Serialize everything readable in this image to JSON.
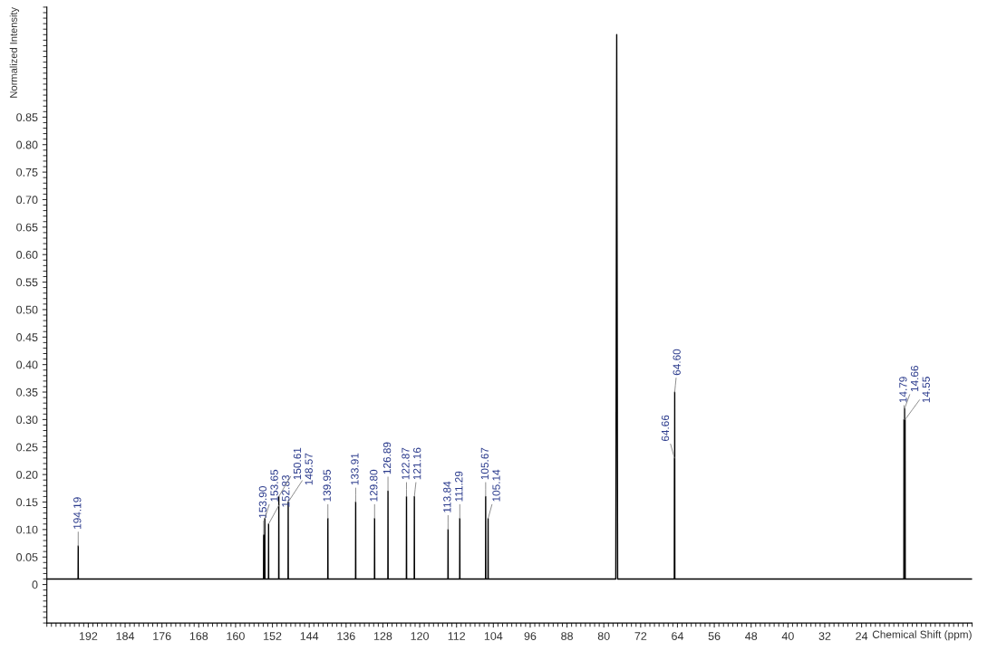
{
  "chart_data": {
    "type": "line",
    "xlabel": "Chemical Shift (ppm)",
    "ylabel": "Normalized Intensity",
    "xlim": [
      201,
      0
    ],
    "ylim": [
      -0.07,
      1.05
    ],
    "xticks": [
      192,
      184,
      176,
      168,
      160,
      152,
      144,
      136,
      128,
      120,
      112,
      104,
      96,
      88,
      80,
      72,
      64,
      56,
      48,
      40,
      32,
      24
    ],
    "yticks": [
      0,
      {
        "value": 0.05,
        "label": "0.05"
      },
      {
        "value": 0.1,
        "label": "0.10"
      },
      {
        "value": 0.15,
        "label": "0.15"
      },
      {
        "value": 0.2,
        "label": "0.20"
      },
      {
        "value": 0.25,
        "label": "0.25"
      },
      {
        "value": 0.3,
        "label": "0.30"
      },
      {
        "value": 0.35,
        "label": "0.35"
      },
      {
        "value": 0.4,
        "label": "0.40"
      },
      {
        "value": 0.45,
        "label": "0.45"
      },
      {
        "value": 0.5,
        "label": "0.50"
      },
      {
        "value": 0.55,
        "label": "0.55"
      },
      {
        "value": 0.6,
        "label": "0.60"
      },
      {
        "value": 0.65,
        "label": "0.65"
      },
      {
        "value": 0.7,
        "label": "0.70"
      },
      {
        "value": 0.75,
        "label": "0.75"
      },
      {
        "value": 0.8,
        "label": "0.80"
      },
      {
        "value": 0.85,
        "label": "0.85"
      }
    ],
    "grid": false,
    "marker": "none",
    "line_style": "solid",
    "series": [
      {
        "color": "#000000",
        "x": [
          201,
          194.22,
          194.19,
          194.16,
          153.93,
          153.9,
          153.87,
          153.68,
          153.65,
          153.62,
          152.86,
          152.83,
          152.8,
          150.64,
          150.61,
          150.58,
          148.6,
          148.57,
          148.54,
          139.98,
          139.95,
          139.92,
          133.94,
          133.91,
          133.88,
          129.83,
          129.8,
          129.77,
          126.92,
          126.89,
          126.86,
          122.9,
          122.87,
          122.84,
          121.19,
          121.16,
          121.13,
          113.87,
          113.84,
          113.81,
          111.32,
          111.29,
          111.26,
          105.7,
          105.67,
          105.64,
          105.17,
          105.14,
          105.11,
          77.4,
          77.2,
          77.0,
          64.69,
          64.66,
          64.63,
          64.6,
          64.57,
          14.82,
          14.79,
          14.73,
          14.66,
          14.6,
          14.55,
          14.52,
          0
        ],
        "values": [
          0.01,
          0.01,
          0.07,
          0.01,
          0.01,
          0.09,
          0.01,
          0.01,
          0.12,
          0.01,
          0.01,
          0.11,
          0.01,
          0.01,
          0.16,
          0.01,
          0.01,
          0.15,
          0.01,
          0.01,
          0.12,
          0.01,
          0.01,
          0.15,
          0.01,
          0.01,
          0.12,
          0.01,
          0.01,
          0.17,
          0.01,
          0.01,
          0.16,
          0.01,
          0.01,
          0.16,
          0.01,
          0.01,
          0.1,
          0.01,
          0.01,
          0.12,
          0.01,
          0.01,
          0.16,
          0.01,
          0.01,
          0.12,
          0.01,
          0.01,
          1.0,
          0.01,
          0.01,
          0.23,
          0.01,
          0.35,
          0.01,
          0.01,
          0.3,
          0.01,
          0.32,
          0.01,
          0.3,
          0.01,
          0.01
        ]
      }
    ],
    "annotations": [
      {
        "text": "194.19",
        "x": 194.19,
        "y": 0.07
      },
      {
        "text": "153.90",
        "x": 153.9,
        "y": 0.09
      },
      {
        "text": "153.65",
        "x": 153.65,
        "y": 0.12
      },
      {
        "text": "152.83",
        "x": 152.83,
        "y": 0.11
      },
      {
        "text": "150.61",
        "x": 150.61,
        "y": 0.16
      },
      {
        "text": "148.57",
        "x": 148.57,
        "y": 0.15
      },
      {
        "text": "139.95",
        "x": 139.95,
        "y": 0.12
      },
      {
        "text": "133.91",
        "x": 133.91,
        "y": 0.15
      },
      {
        "text": "129.80",
        "x": 129.8,
        "y": 0.12
      },
      {
        "text": "126.89",
        "x": 126.89,
        "y": 0.17
      },
      {
        "text": "122.87",
        "x": 122.87,
        "y": 0.16
      },
      {
        "text": "121.16",
        "x": 121.16,
        "y": 0.16
      },
      {
        "text": "113.84",
        "x": 113.84,
        "y": 0.1
      },
      {
        "text": "111.29",
        "x": 111.29,
        "y": 0.12
      },
      {
        "text": "105.67",
        "x": 105.67,
        "y": 0.16
      },
      {
        "text": "105.14",
        "x": 105.14,
        "y": 0.12
      },
      {
        "text": "64.66",
        "x": 64.66,
        "y": 0.23
      },
      {
        "text": "64.60",
        "x": 64.6,
        "y": 0.35
      },
      {
        "text": "14.79",
        "x": 14.79,
        "y": 0.3
      },
      {
        "text": "14.66",
        "x": 14.66,
        "y": 0.32
      },
      {
        "text": "14.55",
        "x": 14.55,
        "y": 0.3
      }
    ]
  }
}
